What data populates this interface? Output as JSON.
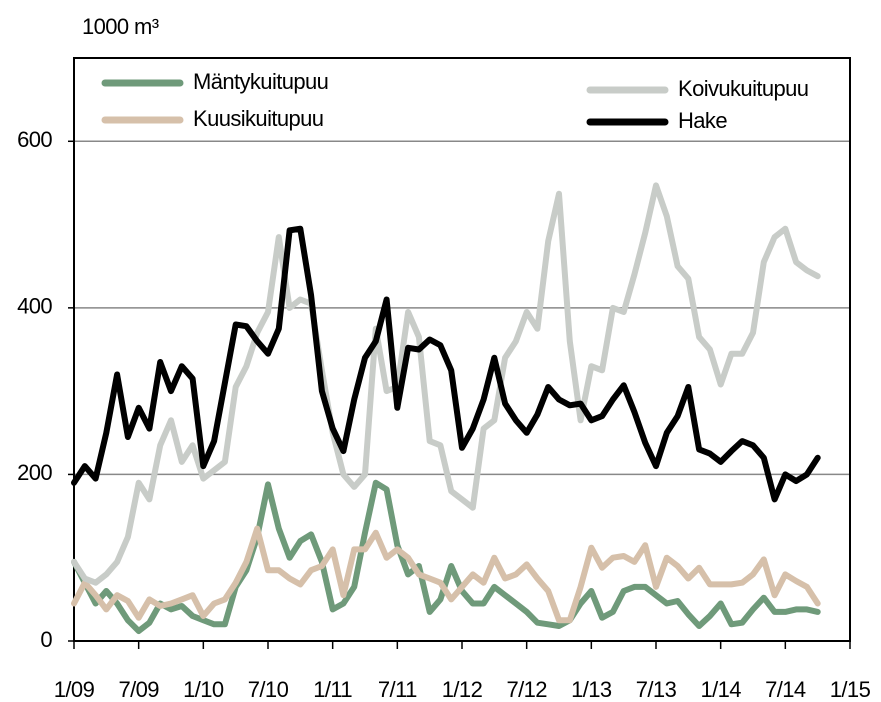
{
  "chart_data": {
    "type": "line",
    "ylabel": "1000 m³",
    "categories": [
      "1/09",
      null,
      null,
      null,
      null,
      null,
      "7/09",
      null,
      null,
      null,
      null,
      null,
      "1/10",
      null,
      null,
      null,
      null,
      null,
      "7/10",
      null,
      null,
      null,
      null,
      null,
      "1/11",
      null,
      null,
      null,
      null,
      null,
      "7/11",
      null,
      null,
      null,
      null,
      null,
      "1/12",
      null,
      null,
      null,
      null,
      null,
      "7/12",
      null,
      null,
      null,
      null,
      null,
      "1/13",
      null,
      null,
      null,
      null,
      null,
      "7/13",
      null,
      null,
      null,
      null,
      null,
      "1/14",
      null,
      null,
      null,
      null,
      null,
      "7/14",
      null,
      null,
      null,
      null,
      null,
      "1/15"
    ],
    "series": [
      {
        "name": "Mäntykuitupuu",
        "color": "#6f9a7a",
        "values": [
          95,
          70,
          45,
          60,
          45,
          25,
          12,
          22,
          45,
          38,
          42,
          30,
          25,
          20,
          20,
          65,
          85,
          125,
          188,
          135,
          100,
          120,
          128,
          95,
          38,
          45,
          65,
          130,
          190,
          182,
          115,
          80,
          90,
          35,
          50,
          90,
          60,
          45,
          45,
          65,
          55,
          45,
          35,
          22,
          20,
          18,
          25,
          45,
          60,
          28,
          35,
          60,
          65,
          65,
          55,
          45,
          48,
          32,
          18,
          30,
          45,
          20,
          22,
          38,
          52,
          35,
          35,
          38,
          38,
          35,
          null,
          null,
          null
        ]
      },
      {
        "name": "Kuusikuitupuu",
        "color": "#d6c0aa",
        "values": [
          45,
          70,
          55,
          38,
          55,
          48,
          28,
          50,
          42,
          45,
          50,
          55,
          30,
          45,
          50,
          70,
          95,
          135,
          85,
          85,
          75,
          68,
          85,
          90,
          110,
          55,
          110,
          110,
          130,
          100,
          110,
          100,
          80,
          75,
          70,
          50,
          65,
          80,
          70,
          100,
          75,
          80,
          92,
          75,
          60,
          25,
          25,
          65,
          112,
          88,
          100,
          102,
          95,
          115,
          65,
          100,
          90,
          75,
          88,
          68,
          68,
          68,
          70,
          80,
          98,
          55,
          80,
          72,
          65,
          45,
          null,
          null,
          null
        ]
      },
      {
        "name": "Koivukuitupuu",
        "color": "#c8ccc8",
        "values": [
          95,
          75,
          70,
          80,
          95,
          125,
          190,
          170,
          235,
          265,
          215,
          235,
          195,
          205,
          215,
          305,
          330,
          370,
          395,
          485,
          400,
          410,
          405,
          325,
          250,
          200,
          185,
          200,
          375,
          300,
          305,
          395,
          365,
          240,
          235,
          180,
          170,
          160,
          255,
          265,
          340,
          360,
          395,
          375,
          480,
          537,
          360,
          265,
          330,
          325,
          400,
          395,
          440,
          490,
          547,
          510,
          450,
          435,
          365,
          350,
          308,
          345,
          345,
          370,
          455,
          485,
          495,
          455,
          445,
          438,
          null,
          null,
          null
        ]
      },
      {
        "name": "Hake",
        "color": "#000000",
        "values": [
          190,
          210,
          195,
          250,
          320,
          245,
          280,
          255,
          335,
          300,
          330,
          315,
          210,
          240,
          310,
          380,
          378,
          360,
          345,
          375,
          493,
          495,
          415,
          300,
          255,
          228,
          290,
          340,
          360,
          410,
          280,
          352,
          350,
          362,
          355,
          325,
          232,
          255,
          290,
          340,
          285,
          265,
          250,
          272,
          305,
          290,
          283,
          285,
          265,
          270,
          290,
          307,
          275,
          238,
          210,
          250,
          270,
          305,
          230,
          225,
          215,
          228,
          240,
          235,
          220,
          170,
          200,
          192,
          200,
          220,
          null,
          null,
          null
        ]
      }
    ],
    "ylim": [
      0,
      700
    ],
    "yticks": [
      0,
      200,
      400,
      600
    ],
    "grid": true
  }
}
